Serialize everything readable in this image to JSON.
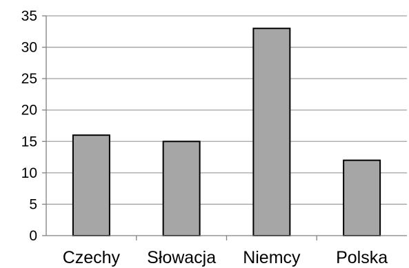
{
  "chart_data": {
    "type": "bar",
    "categories": [
      "Czechy",
      "Słowacja",
      "Niemcy",
      "Polska"
    ],
    "values": [
      16,
      15,
      33,
      12
    ],
    "title": "",
    "xlabel": "",
    "ylabel": "",
    "ylim": [
      0,
      35
    ],
    "yticks": [
      "0",
      "5",
      "10",
      "15",
      "20",
      "25",
      "30",
      "35"
    ],
    "grid": true,
    "legend": "none",
    "colors": {
      "bar_fill": "#a6a6a6",
      "bar_stroke": "#000000",
      "grid": "#a0a0a0",
      "axis": "#808080"
    }
  }
}
